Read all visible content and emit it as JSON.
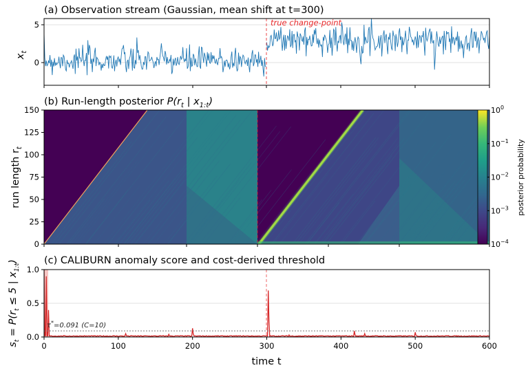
{
  "chart_data": [
    {
      "id": "a",
      "type": "line",
      "title": "(a) Observation stream (Gaussian, mean shift at t=300)",
      "ylabel": "x",
      "ylabel_sub": "t",
      "xlim": [
        0,
        600
      ],
      "ylim": [
        -3.5,
        6
      ],
      "yticks": [
        0,
        5
      ],
      "grid": true,
      "series": [
        {
          "segment": [
            0,
            299
          ],
          "mean": 0,
          "sd": 1
        },
        {
          "segment": [
            300,
            600
          ],
          "mean": 3,
          "sd": 1
        }
      ],
      "annotation": {
        "text": "true change-point",
        "x": 300
      },
      "colors": {
        "line": "#1f77b4",
        "changepoint": "#e8282a"
      }
    },
    {
      "id": "b",
      "type": "heatmap",
      "title_prefix": "(b) Run-length posterior ",
      "title_math": "P(r",
      "title_math_sub": "t",
      "title_math_mid": " | x",
      "title_math_sub2": "1:t",
      "title_math_end": ")",
      "ylabel": "run length r",
      "ylabel_sub": "t",
      "xlim": [
        0,
        600
      ],
      "ylim": [
        0,
        150
      ],
      "yticks": [
        0,
        25,
        50,
        75,
        100,
        125,
        150
      ],
      "colorbar": {
        "label": "posterior probability",
        "scale": "log",
        "range": [
          0.0001,
          1
        ],
        "ticks": [
          "10",
          "10",
          "10",
          "10",
          "10"
        ],
        "tick_exps": [
          "0",
          "−1",
          "−2",
          "−3",
          "−4"
        ],
        "tick_values": [
          1,
          0.1,
          0.01,
          0.001,
          0.0001
        ]
      },
      "vertical_bands": [
        192,
        286,
        480
      ],
      "diagonal_ridges": [
        {
          "start": 0,
          "end": 150
        },
        {
          "start": 300,
          "end": 460
        }
      ],
      "colors": {
        "cmap": "viridis",
        "changepoint": "#e8282a"
      }
    },
    {
      "id": "c",
      "type": "line",
      "title": "(c) CALIBURN anomaly score and cost-derived threshold",
      "ylabel_main": "s",
      "ylabel_sub": "t",
      "ylabel_rest": " = P(r",
      "ylabel_sub2": "t",
      "ylabel_rest2": " ≤ 5 | x",
      "ylabel_sub3": "1:t",
      "ylabel_end": ")",
      "xlabel": "time t",
      "xlim": [
        0,
        600
      ],
      "ylim": [
        0,
        1
      ],
      "xticks": [
        0,
        100,
        200,
        300,
        400,
        500,
        600
      ],
      "yticks": [
        "0.0",
        "0.5",
        "1.0"
      ],
      "ytick_values": [
        0,
        0.5,
        1
      ],
      "threshold": {
        "value": 0.091,
        "text_main": "τ",
        "text_sup": "*",
        "text_rest": "=0.091 (C=10)"
      },
      "spikes": [
        {
          "t": 0,
          "v": 1.0
        },
        {
          "t": 3,
          "v": 0.9
        },
        {
          "t": 6,
          "v": 0.4
        },
        {
          "t": 110,
          "v": 0.05
        },
        {
          "t": 168,
          "v": 0.04
        },
        {
          "t": 200,
          "v": 0.13
        },
        {
          "t": 302,
          "v": 0.69
        },
        {
          "t": 330,
          "v": 0.03
        },
        {
          "t": 418,
          "v": 0.09
        },
        {
          "t": 432,
          "v": 0.05
        },
        {
          "t": 500,
          "v": 0.07
        },
        {
          "t": 545,
          "v": 0.02
        }
      ],
      "colors": {
        "line": "#d62728",
        "fill": "#f4b8b5",
        "threshold": "#777777",
        "changepoint": "#e8282a"
      }
    }
  ]
}
